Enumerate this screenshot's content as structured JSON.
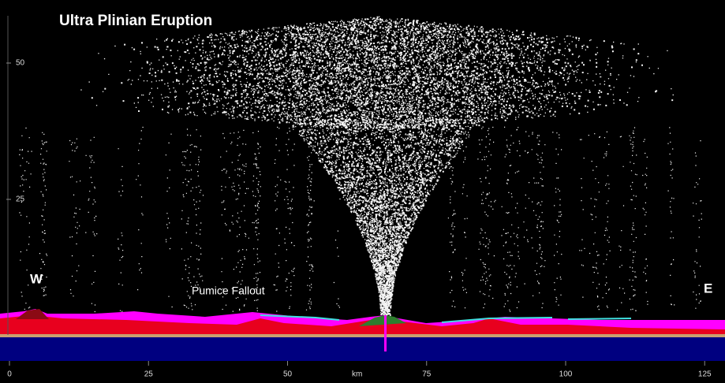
{
  "title": "Ultra Plinian Eruption",
  "labels": {
    "west": "W",
    "east": "E",
    "fallout": "Pumice Fallout"
  },
  "x_axis": {
    "unit": "km",
    "ticks": [
      0,
      25,
      50,
      75,
      100,
      125
    ]
  },
  "y_axis": {
    "ticks": [
      25,
      50
    ]
  }
}
